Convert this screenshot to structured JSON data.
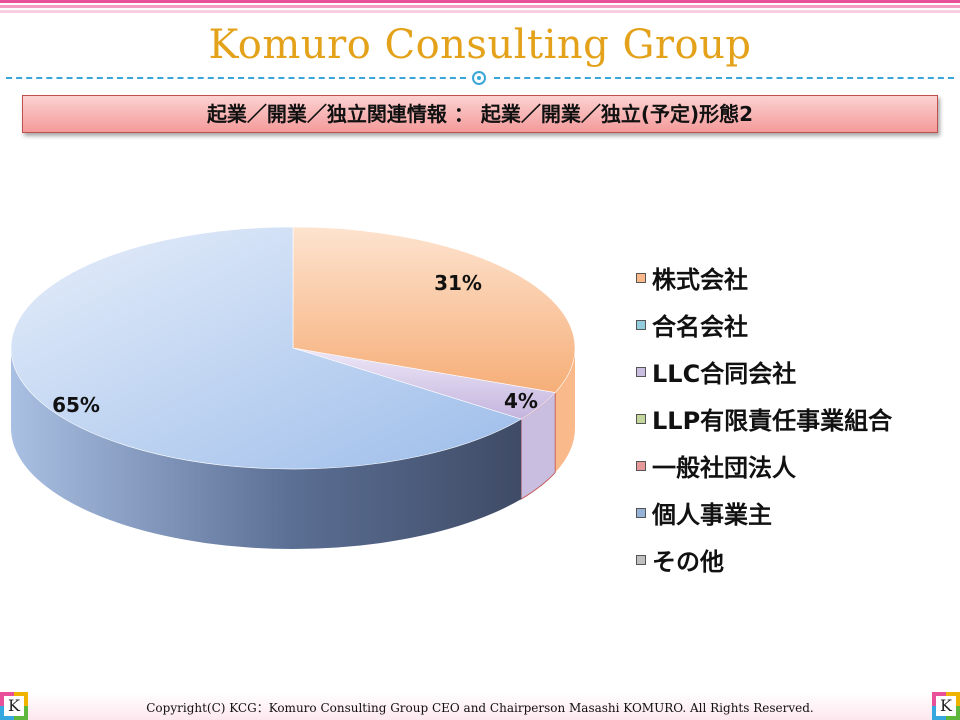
{
  "header": {
    "brand_title": "Komuro Consulting Group",
    "section_heading": "起業／開業／独立関連情報 ： 起業／開業／独立(予定)形態2"
  },
  "chart_data": {
    "type": "pie",
    "style": "3d",
    "categories": [
      "株式会社",
      "合名会社",
      "LLC合同会社",
      "LLP有限責任事業組合",
      "一般社団法人",
      "個人事業主",
      "その他"
    ],
    "values": [
      31,
      0,
      4,
      0,
      0,
      65,
      0
    ],
    "value_labels": [
      "31%",
      "",
      "4%",
      "",
      "",
      "65%",
      ""
    ],
    "colors": [
      "#f9b98b",
      "#93cddd",
      "#c9bde0",
      "#c3d69b",
      "#e6989a",
      "#95b3d7",
      "#bfbfbf"
    ],
    "legend_position": "right"
  },
  "footer": {
    "copyright": "Copyright(C) KCG：Komuro Consulting Group CEO and Chairperson Masashi KOMURO. All Rights Reserved.",
    "logo_letter": "K"
  },
  "colors": {
    "brand": "#e3a21a",
    "accent_line": "#3aa6d8",
    "heading_border": "#c0504d"
  }
}
